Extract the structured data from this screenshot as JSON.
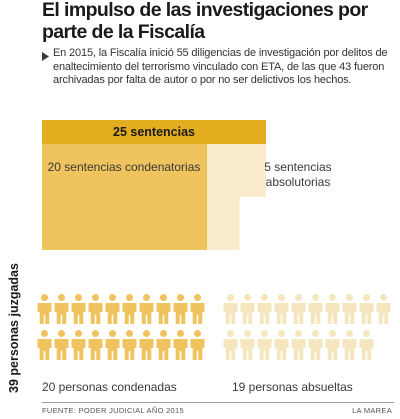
{
  "title": "El impulso de las investigaciones por parte de la Fiscalía",
  "intro": "En 2015, la Fiscalía inició 55 diligencias de investigación por delitos de enaltecimiento del terrorismo vinculado con ETA, de las que 43 fueron archivadas por falta de autor o por no ser delictivos los hechos.",
  "colors": {
    "dark": "#e3ad1f",
    "medium": "#efc35d",
    "light": "#faeccb",
    "person_condemned": "#efc35d",
    "person_absolved": "#f6e6bf",
    "arrow": "#3a3a3a"
  },
  "icons": {
    "bullet": "triangle-right-icon",
    "person": "person-icon"
  },
  "chart_data": [
    {
      "type": "bar",
      "categories": [
        "condenatorias",
        "absolutorias"
      ],
      "values": [
        20,
        5
      ],
      "total": 25,
      "labels": {
        "total": "25 sentencias",
        "condemnatory": "20 sentencias condenatorias",
        "absolutory": "5 sentencias absolutorias"
      }
    },
    {
      "type": "table",
      "categories": [
        "condenadas",
        "absueltas"
      ],
      "values": [
        20,
        19
      ],
      "total": 39,
      "labels": {
        "total": "39 personas juzgadas",
        "condemned": "20 personas condenadas",
        "absolved": "19 personas absueltas"
      }
    }
  ],
  "footer": {
    "source": "FUENTE: PODER JUDICIAL AÑO 2015",
    "brand": "LA MAREA"
  }
}
